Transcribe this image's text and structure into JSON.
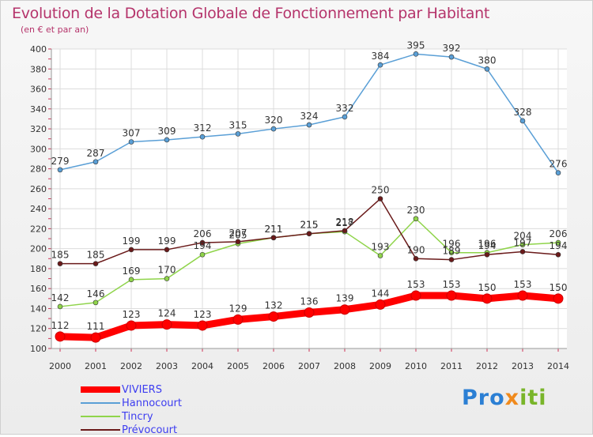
{
  "title": "Evolution de la Dotation Globale de Fonctionnement par Habitant",
  "subtitle": "(en € et par an)",
  "logo": "Proxiti",
  "chart_data": {
    "type": "line",
    "title": "Evolution de la Dotation Globale de Fonctionnement par Habitant",
    "subtitle": "(en € et par an)",
    "x": [
      "2000",
      "2001",
      "2002",
      "2003",
      "2004",
      "2005",
      "2006",
      "2007",
      "2008",
      "2009",
      "2010",
      "2011",
      "2012",
      "2013",
      "2014"
    ],
    "ylim": [
      100,
      400
    ],
    "yticks": [
      100,
      120,
      140,
      160,
      180,
      200,
      220,
      240,
      260,
      280,
      300,
      320,
      340,
      360,
      380,
      400
    ],
    "grid": true,
    "legend_position": "bottom-left",
    "series": [
      {
        "name": "VIVIERS",
        "color": "#ff0000",
        "values": [
          112,
          111,
          123,
          124,
          123,
          129,
          132,
          136,
          139,
          144,
          153,
          153,
          150,
          153,
          150
        ]
      },
      {
        "name": "Hannocourt",
        "color": "#5a9fd6",
        "values": [
          279,
          287,
          307,
          309,
          312,
          315,
          320,
          324,
          332,
          384,
          395,
          392,
          380,
          328,
          276
        ]
      },
      {
        "name": "Tincry",
        "color": "#8fd44a",
        "values": [
          142,
          146,
          169,
          170,
          194,
          205,
          211,
          215,
          217,
          193,
          230,
          196,
          196,
          204,
          206
        ]
      },
      {
        "name": "Prévocourt",
        "color": "#6a1a1a",
        "values": [
          185,
          185,
          199,
          199,
          206,
          207,
          211,
          215,
          218,
          250,
          190,
          189,
          194,
          197,
          194
        ]
      }
    ]
  }
}
